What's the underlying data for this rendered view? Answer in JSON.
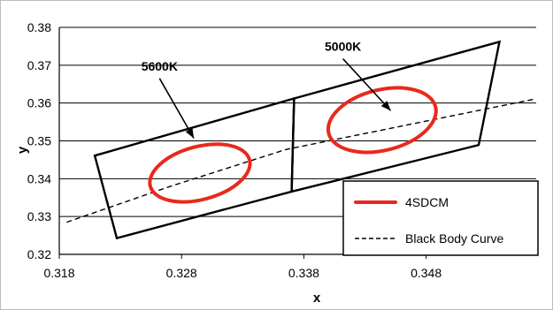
{
  "chart_data": {
    "type": "line",
    "xlabel": "x",
    "ylabel": "y",
    "xlim": [
      0.318,
      0.357
    ],
    "ylim": [
      0.32,
      0.38
    ],
    "x_ticks": [
      "0.318",
      "0.328",
      "0.338",
      "0.348"
    ],
    "y_ticks": [
      "0.32",
      "0.33",
      "0.34",
      "0.35",
      "0.36",
      "0.37",
      "0.38"
    ],
    "grid": "horizontal",
    "legend_position": "bottom-right",
    "series": [
      {
        "name": "4SDCM",
        "kind": "ellipse",
        "color": "#e8291c",
        "ellipses": [
          {
            "cx": 0.3295,
            "cy": 0.3415,
            "x_half": 0.0042,
            "y_half": 0.007,
            "rotation_deg": -15
          },
          {
            "cx": 0.3444,
            "cy": 0.3555,
            "x_half": 0.0045,
            "y_half": 0.008,
            "rotation_deg": -14
          }
        ]
      },
      {
        "name": "Black Body Curve",
        "kind": "dashed-line",
        "color": "#000000",
        "points": [
          [
            0.3186,
            0.3285
          ],
          [
            0.3271,
            0.338
          ],
          [
            0.3365,
            0.3477
          ],
          [
            0.3568,
            0.361
          ]
        ]
      }
    ],
    "regions": [
      {
        "kind": "quadrangle",
        "points": [
          [
            0.3209,
            0.3461
          ],
          [
            0.3372,
            0.3612
          ],
          [
            0.337,
            0.3366
          ],
          [
            0.3227,
            0.3243
          ]
        ]
      },
      {
        "kind": "quadrangle",
        "points": [
          [
            0.3372,
            0.3612
          ],
          [
            0.354,
            0.3762
          ],
          [
            0.3523,
            0.3489
          ],
          [
            0.337,
            0.3366
          ]
        ]
      }
    ],
    "annotations": [
      {
        "text": "5600K",
        "arrow_from": [
          0.3262,
          0.3665
        ],
        "arrow_to": [
          0.329,
          0.3507
        ]
      },
      {
        "text": "5000K",
        "arrow_from": [
          0.3412,
          0.3717
        ],
        "arrow_to": [
          0.3451,
          0.358
        ]
      }
    ]
  }
}
